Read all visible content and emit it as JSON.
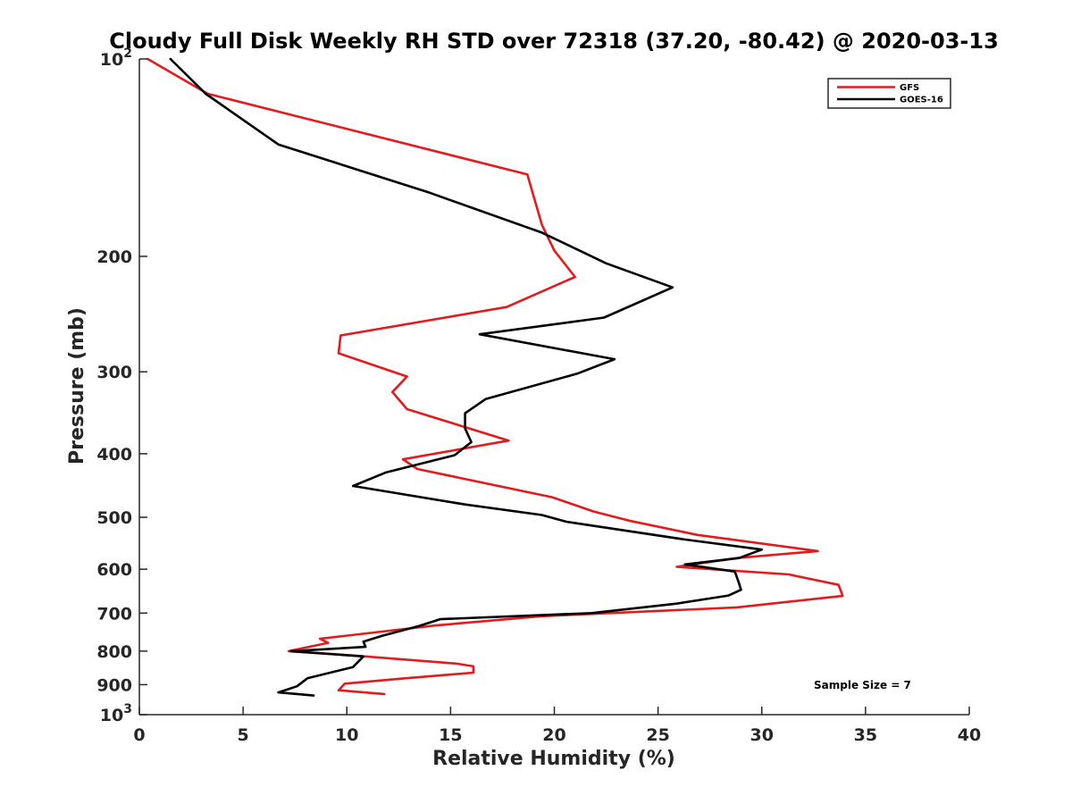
{
  "chart_data": {
    "type": "line",
    "title": "Cloudy Full Disk Weekly RH STD over 72318 (37.20, -80.42) @ 2020-03-13",
    "xlabel": "Relative Humidity (%)",
    "ylabel": "Pressure (mb)",
    "xlim": [
      0,
      40
    ],
    "ylim": [
      100,
      1000
    ],
    "yscale": "log",
    "y_reversed": true,
    "grid": false,
    "x_ticks": [
      "0",
      "5",
      "10",
      "15",
      "20",
      "25",
      "30",
      "35",
      "40"
    ],
    "x_tick_values": [
      0,
      5,
      10,
      15,
      20,
      25,
      30,
      35,
      40
    ],
    "y_ticks": [
      {
        "base": "10",
        "exp": "2",
        "value": 100
      },
      {
        "base": "200",
        "exp": "",
        "value": 200
      },
      {
        "base": "300",
        "exp": "",
        "value": 300
      },
      {
        "base": "400",
        "exp": "",
        "value": 400
      },
      {
        "base": "500",
        "exp": "",
        "value": 500
      },
      {
        "base": "600",
        "exp": "",
        "value": 600
      },
      {
        "base": "700",
        "exp": "",
        "value": 700
      },
      {
        "base": "800",
        "exp": "",
        "value": 800
      },
      {
        "base": "900",
        "exp": "",
        "value": 900
      },
      {
        "base": "10",
        "exp": "3",
        "value": 1000
      }
    ],
    "legend_position": "top-right",
    "series": [
      {
        "name": "GFS",
        "color": "#e41a1c",
        "points": [
          [
            0.4,
            100
          ],
          [
            3.3,
            113
          ],
          [
            18.7,
            150
          ],
          [
            19.4,
            179
          ],
          [
            20.0,
            196
          ],
          [
            21.0,
            215
          ],
          [
            17.7,
            239
          ],
          [
            9.7,
            264
          ],
          [
            9.6,
            281
          ],
          [
            12.9,
            305
          ],
          [
            12.2,
            322
          ],
          [
            12.9,
            342
          ],
          [
            17.8,
            382
          ],
          [
            12.7,
            408
          ],
          [
            13.4,
            422
          ],
          [
            19.9,
            466
          ],
          [
            21.9,
            490
          ],
          [
            23.6,
            506
          ],
          [
            26.9,
            532
          ],
          [
            32.7,
            563
          ],
          [
            28.8,
            577
          ],
          [
            25.9,
            595
          ],
          [
            31.3,
            611
          ],
          [
            33.7,
            634
          ],
          [
            33.9,
            659
          ],
          [
            28.8,
            686
          ],
          [
            19.3,
            708
          ],
          [
            14.3,
            731
          ],
          [
            8.7,
            766
          ],
          [
            9.1,
            777
          ],
          [
            7.2,
            800
          ],
          [
            10.2,
            812
          ],
          [
            15.3,
            836
          ],
          [
            16.1,
            844
          ],
          [
            16.1,
            863
          ],
          [
            12.8,
            880
          ],
          [
            9.9,
            897
          ],
          [
            9.6,
            918
          ],
          [
            11.8,
            930
          ]
        ]
      },
      {
        "name": "GOES-16",
        "color": "#000000",
        "points": [
          [
            1.5,
            100
          ],
          [
            3.2,
            113
          ],
          [
            6.7,
            135
          ],
          [
            14.0,
            160
          ],
          [
            19.4,
            184
          ],
          [
            22.5,
            205
          ],
          [
            25.7,
            223
          ],
          [
            22.4,
            248
          ],
          [
            16.4,
            263
          ],
          [
            22.9,
            287
          ],
          [
            21.1,
            302
          ],
          [
            16.7,
            330
          ],
          [
            15.7,
            347
          ],
          [
            15.7,
            366
          ],
          [
            16.0,
            384
          ],
          [
            15.2,
            402
          ],
          [
            11.9,
            427
          ],
          [
            10.3,
            448
          ],
          [
            15.7,
            478
          ],
          [
            19.4,
            496
          ],
          [
            20.6,
            508
          ],
          [
            26.2,
            540
          ],
          [
            30.0,
            560
          ],
          [
            28.9,
            577
          ],
          [
            26.3,
            590
          ],
          [
            28.7,
            605
          ],
          [
            28.9,
            630
          ],
          [
            29.0,
            645
          ],
          [
            28.4,
            658
          ],
          [
            25.9,
            677
          ],
          [
            21.8,
            700
          ],
          [
            14.5,
            715
          ],
          [
            13.5,
            732
          ],
          [
            11.7,
            758
          ],
          [
            10.8,
            774
          ],
          [
            10.9,
            788
          ],
          [
            7.3,
            800
          ],
          [
            10.8,
            815
          ],
          [
            10.3,
            846
          ],
          [
            8.1,
            880
          ],
          [
            7.6,
            905
          ],
          [
            6.7,
            925
          ],
          [
            8.4,
            935
          ]
        ]
      }
    ],
    "annotation": "Sample Size = 7"
  }
}
